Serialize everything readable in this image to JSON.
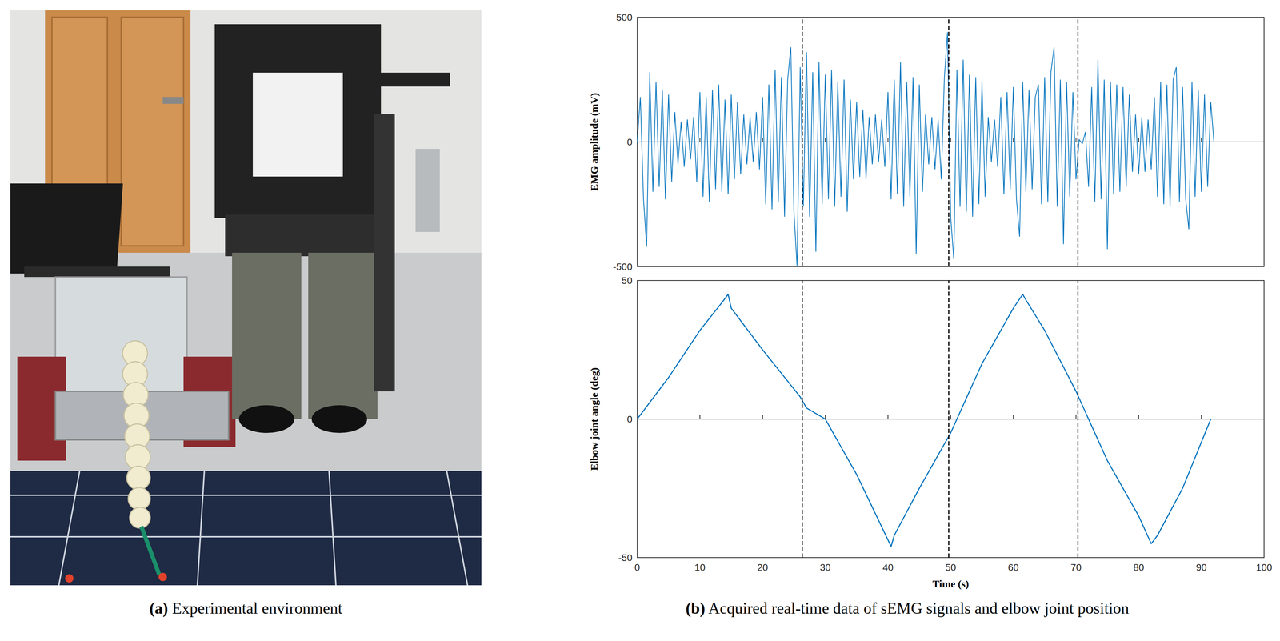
{
  "panels": {
    "a": {
      "label": "(a)",
      "caption": "Experimental environment"
    },
    "b": {
      "label": "(b)",
      "caption": "Acquired real-time data of sEMG signals and elbow joint position"
    }
  },
  "chart_data": [
    {
      "type": "line",
      "y_label": "EMG amplitude (mV)",
      "color": "#0072bd",
      "x": [
        0,
        0.5,
        1,
        1.5,
        2,
        2.5,
        3,
        3.5,
        4,
        4.5,
        5,
        5.5,
        6,
        6.5,
        7,
        7.5,
        8,
        8.5,
        9,
        9.5,
        10,
        10.5,
        11,
        11.5,
        12,
        12.5,
        13,
        13.5,
        14,
        14.5,
        15,
        15.5,
        16,
        16.5,
        17,
        17.5,
        18,
        18.5,
        19,
        19.5,
        20,
        20.5,
        21,
        21.5,
        22,
        22.5,
        23,
        23.5,
        24,
        24.5,
        25,
        25.5,
        26,
        26.5,
        27,
        27.5,
        28,
        28.5,
        29,
        29.5,
        30,
        30.5,
        31,
        31.5,
        32,
        32.5,
        33,
        33.5,
        34,
        34.5,
        35,
        35.5,
        36,
        36.5,
        37,
        37.5,
        38,
        38.5,
        39,
        39.5,
        40,
        40.5,
        41,
        41.5,
        42,
        42.5,
        43,
        43.5,
        44,
        44.5,
        45,
        45.5,
        46,
        46.5,
        47,
        47.5,
        48,
        48.5,
        49,
        49.5,
        50,
        50.5,
        51,
        51.5,
        52,
        52.5,
        53,
        53.5,
        54,
        54.5,
        55,
        55.5,
        56,
        56.5,
        57,
        57.5,
        58,
        58.5,
        59,
        59.5,
        60,
        60.5,
        61,
        61.5,
        62,
        62.5,
        63,
        63.5,
        64,
        64.5,
        65,
        65.5,
        66,
        66.5,
        67,
        67.5,
        68,
        68.5,
        69,
        69.5,
        70,
        70.5,
        71,
        71.5,
        72,
        72.5,
        73,
        73.5,
        74,
        74.5,
        75,
        75.5,
        76,
        76.5,
        77,
        77.5,
        78,
        78.5,
        79,
        79.5,
        80,
        80.5,
        81,
        81.5,
        82,
        82.5,
        83,
        83.5,
        84,
        84.5,
        85,
        85.5,
        86,
        86.5,
        87,
        87.5,
        88,
        88.5,
        89,
        89.5,
        90,
        90.5,
        91,
        91.5,
        92
      ],
      "values": [
        0,
        180,
        -230,
        -420,
        280,
        -200,
        240,
        -180,
        210,
        -230,
        190,
        -160,
        120,
        -90,
        80,
        -100,
        90,
        -70,
        100,
        -160,
        200,
        -220,
        180,
        -240,
        210,
        -190,
        230,
        -200,
        170,
        -210,
        190,
        -150,
        160,
        -130,
        110,
        -90,
        100,
        -80,
        120,
        -110,
        180,
        -250,
        230,
        -270,
        290,
        -240,
        260,
        -300,
        250,
        380,
        -280,
        -500,
        300,
        -260,
        360,
        -300,
        280,
        -440,
        320,
        -250,
        270,
        -230,
        290,
        -260,
        240,
        -220,
        250,
        -280,
        170,
        -150,
        160,
        -140,
        130,
        -150,
        100,
        -90,
        110,
        -80,
        90,
        -100,
        200,
        -230,
        250,
        -210,
        320,
        -260,
        240,
        -220,
        260,
        -450,
        230,
        -200,
        110,
        -90,
        100,
        -110,
        90,
        -150,
        260,
        440,
        -300,
        -470,
        290,
        -260,
        330,
        -280,
        270,
        -300,
        260,
        -250,
        240,
        -220,
        100,
        -80,
        90,
        -100,
        180,
        -210,
        200,
        -190,
        220,
        -230,
        -380,
        240,
        -200,
        210,
        -190,
        180,
        230,
        -250,
        260,
        -240,
        280,
        380,
        -260,
        250,
        -410,
        240,
        -220,
        200,
        -150,
        10,
        -8,
        40,
        -180,
        220,
        -240,
        330,
        -230,
        250,
        -430,
        240,
        -210,
        230,
        -200,
        220,
        -180,
        190,
        -120,
        110,
        -130,
        100,
        -120,
        90,
        -110,
        180,
        -220,
        240,
        -250,
        230,
        -260,
        250,
        300,
        -240,
        220,
        -230,
        -350,
        240,
        -220,
        210,
        -200,
        190,
        -180,
        160,
        0
      ],
      "xlim": [
        0,
        100
      ],
      "xticks": [
        0,
        10,
        20,
        30,
        40,
        50,
        60,
        70,
        80,
        90,
        100
      ],
      "ylim": [
        -500,
        500
      ],
      "yticks": [
        -500,
        0,
        500
      ],
      "tick_labels": "y",
      "vlines": [
        26.3,
        49.7,
        70.3
      ]
    },
    {
      "type": "line",
      "x_label": "Time (s)",
      "y_label": "Elbow joint angle (deg)",
      "color": "#0072bd",
      "x": [
        0,
        5,
        10,
        13.5,
        14.5,
        15,
        20,
        26,
        27,
        30,
        35,
        40.5,
        41,
        45,
        50,
        55,
        60,
        61.5,
        62,
        65,
        70,
        71,
        75,
        80,
        82,
        83,
        87,
        91.5
      ],
      "values": [
        0,
        15,
        32,
        42,
        45,
        40,
        25,
        8,
        4,
        0,
        -20,
        -46,
        -42,
        -25,
        -5,
        20,
        40,
        45,
        43,
        32,
        10,
        5,
        -15,
        -35,
        -45,
        -42,
        -25,
        0
      ],
      "xlim": [
        0,
        100
      ],
      "xticks": [
        0,
        10,
        20,
        30,
        40,
        50,
        60,
        70,
        80,
        90,
        100
      ],
      "ylim": [
        -50,
        50
      ],
      "yticks": [
        -50,
        0,
        50
      ],
      "vlines": [
        26.3,
        49.7,
        70.3
      ]
    }
  ]
}
